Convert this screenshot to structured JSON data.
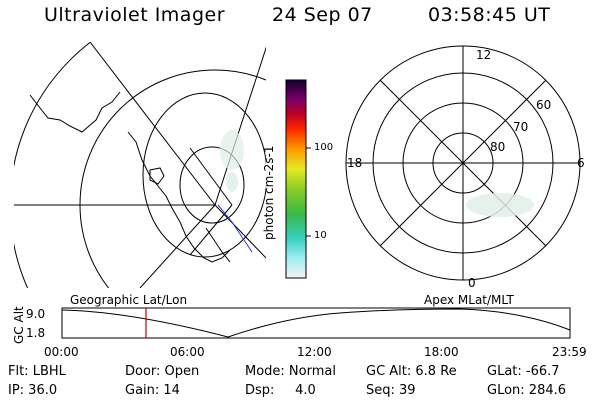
{
  "header": {
    "title": "Ultraviolet Imager",
    "date": "24 Sep 07",
    "time": "03:58:45 UT"
  },
  "colorbar": {
    "unit_label": "photon cm-2s-1",
    "ticks": [
      "100",
      "10"
    ]
  },
  "polar_plot": {
    "mlt_labels": [
      "12",
      "18",
      "6",
      "0"
    ],
    "lat_labels": [
      "60",
      "70",
      "80"
    ]
  },
  "panel_labels": {
    "left": "Geographic Lat/Lon",
    "right": "Apex MLat/MLT"
  },
  "altitude_plot": {
    "axis_title": "GC Alt",
    "y_ticks": [
      "9.0",
      "1.8"
    ],
    "x_ticks": [
      "00:00",
      "06:00",
      "12:00",
      "18:00",
      "23:59"
    ],
    "marker_color": "#cc0000"
  },
  "info": {
    "flt": "Flt: LBHL",
    "door": "Door: Open",
    "mode": "Mode: Normal",
    "gc_alt": "GC Alt: 6.8 Re",
    "glat": "GLat: -66.7",
    "ip": "IP: 36.0",
    "gain": "Gain: 14",
    "dsp": "Dsp:     4.0",
    "seq": "Seq: 39",
    "glon": "GLon: 284.6"
  }
}
